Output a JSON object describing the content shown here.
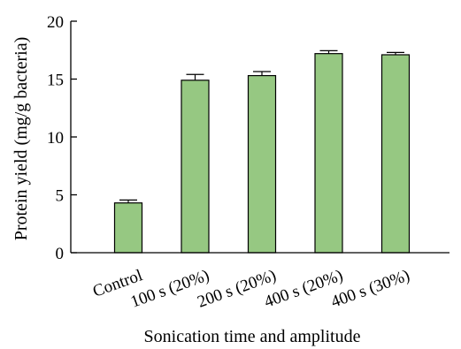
{
  "chart_data": {
    "type": "bar",
    "title": "",
    "xlabel": "Sonication time and amplitude",
    "ylabel": "Protein yield (mg/g bacteria)",
    "categories": [
      "Control",
      "100 s (20%)",
      "200 s (20%)",
      "400 s (20%)",
      "400 s (30%)"
    ],
    "series": [
      {
        "values": [
          4.3,
          14.9,
          15.3,
          17.2,
          17.1
        ],
        "errors": [
          0.25,
          0.5,
          0.35,
          0.25,
          0.2
        ]
      }
    ],
    "ylim": [
      0,
      20
    ],
    "yticks": [
      0,
      5,
      10,
      15,
      20
    ],
    "grid": false,
    "legend": "none",
    "error_bars": "upper",
    "colors": {
      "bar_fill": "#96c882",
      "bar_stroke": "#000000",
      "axis": "#000000"
    }
  }
}
